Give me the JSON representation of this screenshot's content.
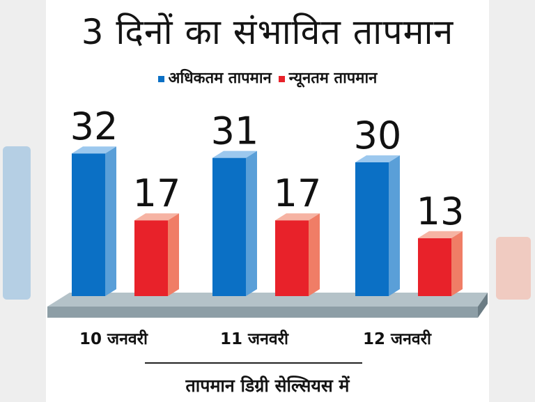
{
  "chart_data": {
    "type": "bar",
    "title": "3 दिनों का संभावित तापमान",
    "xlabel": "तापमान डिग्री सेल्सियस में",
    "ylabel": "",
    "categories": [
      "10 जनवरी",
      "11 जनवरी",
      "12 जनवरी"
    ],
    "series": [
      {
        "name": "अधिकतम तापमान",
        "values": [
          32,
          31,
          30
        ],
        "color": "#0b70c5",
        "side_color": "#5a9fd8",
        "top_color": "#9cc8ee"
      },
      {
        "name": "न्यूनतम तापमान",
        "values": [
          17,
          17,
          13
        ],
        "color": "#e8222a",
        "side_color": "#f07d66",
        "top_color": "#f6b3a3"
      }
    ],
    "ylim": [
      0,
      35
    ],
    "legend_position": "top-center",
    "grid": false
  },
  "colors": {
    "floor": "#8d9ea6",
    "floor_edge": "#6b7c84",
    "text": "#141414"
  }
}
